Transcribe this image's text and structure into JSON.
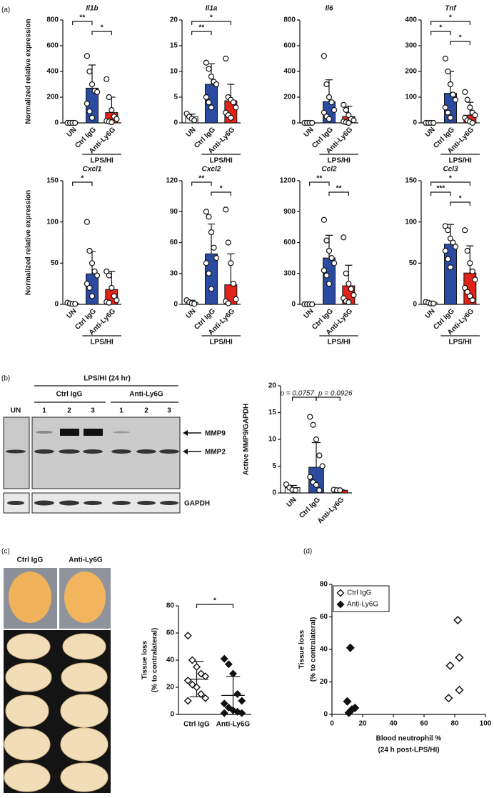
{
  "panel_labels": [
    "(a)",
    "(b)",
    "(c)",
    "(d)"
  ],
  "blot": {
    "title": "LPS/HI (24 hr)",
    "groups": [
      "Ctrl IgG",
      "Anti-Ly6G"
    ],
    "un": "UN",
    "lanes": [
      "1",
      "2",
      "3",
      "1",
      "2",
      "3"
    ],
    "bands": [
      "MMP9",
      "MMP2",
      "GAPDH"
    ]
  },
  "brain": {
    "columns": [
      "Ctrl IgG",
      "Anti-Ly6G"
    ]
  },
  "chart_data": [
    {
      "type": "bar",
      "title": "Il1b",
      "ylabel": "Normalized relative expression",
      "categories": [
        "UN",
        "Ctrl IgG",
        "Anti-Ly6G"
      ],
      "group_label": "LPS/HI",
      "colors": [
        "#ffffff",
        "#2b4ba0",
        "#e2231a"
      ],
      "values": [
        0,
        270,
        80
      ],
      "errors": [
        0,
        180,
        120
      ],
      "points": [
        [
          0,
          0,
          0,
          0
        ],
        [
          520,
          400,
          300,
          250,
          240,
          150,
          90,
          40
        ],
        [
          340,
          200,
          100,
          50,
          30,
          15,
          10,
          5
        ]
      ],
      "ylim": [
        0,
        800
      ],
      "yticks": [
        0,
        200,
        400,
        600,
        800
      ],
      "brackets": [
        {
          "from": "UN",
          "to": "Ctrl IgG",
          "label": "**"
        },
        {
          "from": "Ctrl IgG",
          "to": "Anti-Ly6G",
          "label": "*"
        }
      ]
    },
    {
      "type": "bar",
      "title": "Il1a",
      "categories": [
        "UN",
        "Ctrl IgG",
        "Anti-Ly6G"
      ],
      "group_label": "LPS/HI",
      "colors": [
        "#ffffff",
        "#2b4ba0",
        "#e2231a"
      ],
      "values": [
        1.2,
        7.5,
        4.3
      ],
      "errors": [
        0.5,
        4,
        3.2
      ],
      "points": [
        [
          1.8,
          1.2,
          0.8,
          0.5
        ],
        [
          11.7,
          10.5,
          9,
          8,
          7.5,
          5,
          4,
          3
        ],
        [
          12.5,
          5,
          4.5,
          4,
          3,
          2,
          1.5,
          1
        ]
      ],
      "ylim": [
        0,
        20
      ],
      "yticks": [
        0,
        5,
        10,
        15,
        20
      ],
      "brackets": [
        {
          "from": "UN",
          "to": "Anti-Ly6G",
          "label": "*"
        },
        {
          "from": "UN",
          "to": "Ctrl IgG",
          "label": "**"
        }
      ]
    },
    {
      "type": "bar",
      "title": "Il6",
      "categories": [
        "UN",
        "Ctrl IgG",
        "Anti-Ly6G"
      ],
      "group_label": "LPS/HI",
      "colors": [
        "#ffffff",
        "#2b4ba0",
        "#e2231a"
      ],
      "values": [
        0,
        165,
        50
      ],
      "errors": [
        0,
        170,
        80
      ],
      "points": [
        [
          0,
          0,
          0,
          0
        ],
        [
          520,
          300,
          200,
          160,
          100,
          80,
          50,
          30
        ],
        [
          140,
          100,
          60,
          30,
          20,
          10,
          5,
          0
        ]
      ],
      "ylim": [
        0,
        800
      ],
      "yticks": [
        0,
        200,
        400,
        600,
        800
      ],
      "brackets": []
    },
    {
      "type": "bar",
      "title": "Tnf",
      "categories": [
        "UN",
        "Ctrl IgG",
        "Anti-Ly6G"
      ],
      "group_label": "LPS/HI",
      "colors": [
        "#ffffff",
        "#2b4ba0",
        "#e2231a"
      ],
      "values": [
        0,
        115,
        30
      ],
      "errors": [
        0,
        85,
        50
      ],
      "points": [
        [
          0,
          0,
          0,
          0
        ],
        [
          250,
          200,
          150,
          110,
          90,
          60,
          40,
          20
        ],
        [
          120,
          90,
          60,
          40,
          30,
          20,
          10,
          5,
          0
        ]
      ],
      "ylim": [
        0,
        400
      ],
      "yticks": [
        0,
        100,
        200,
        300,
        400
      ],
      "brackets": [
        {
          "from": "UN",
          "to": "Anti-Ly6G",
          "label": "*"
        },
        {
          "from": "UN",
          "to": "Ctrl IgG",
          "label": "*"
        },
        {
          "from": "Ctrl IgG",
          "to": "Anti-Ly6G",
          "label": "*"
        }
      ]
    },
    {
      "type": "bar",
      "title": "Cxcl1",
      "ylabel": "Normalized relative expression",
      "categories": [
        "UN",
        "Ctrl IgG",
        "Anti-Ly6G"
      ],
      "group_label": "LPS/HI",
      "colors": [
        "#ffffff",
        "#2b4ba0",
        "#e2231a"
      ],
      "values": [
        1,
        37,
        18
      ],
      "errors": [
        0.5,
        27,
        22
      ],
      "points": [
        [
          2,
          1,
          0.5,
          0.5
        ],
        [
          100,
          65,
          50,
          40,
          35,
          25,
          20,
          10
        ],
        [
          40,
          35,
          20,
          10,
          5,
          3,
          2
        ]
      ],
      "ylim": [
        0,
        150
      ],
      "yticks": [
        0,
        50,
        100,
        150
      ],
      "brackets": [
        {
          "from": "UN",
          "to": "Ctrl IgG",
          "label": "*"
        }
      ]
    },
    {
      "type": "bar",
      "title": "Cxcl2",
      "categories": [
        "UN",
        "Ctrl IgG",
        "Anti-Ly6G"
      ],
      "group_label": "LPS/HI",
      "colors": [
        "#ffffff",
        "#2b4ba0",
        "#e2231a"
      ],
      "values": [
        2,
        49,
        19
      ],
      "errors": [
        2,
        29,
        30
      ],
      "points": [
        [
          4,
          2,
          1,
          0.5
        ],
        [
          90,
          85,
          70,
          55,
          45,
          40,
          30,
          15
        ],
        [
          92,
          60,
          40,
          20,
          5,
          3,
          1
        ]
      ],
      "ylim": [
        0,
        120
      ],
      "yticks": [
        0,
        30,
        60,
        90,
        120
      ],
      "brackets": [
        {
          "from": "UN",
          "to": "Ctrl IgG",
          "label": "**"
        },
        {
          "from": "Ctrl IgG",
          "to": "Anti-Ly6G",
          "label": "*"
        }
      ]
    },
    {
      "type": "bar",
      "title": "Ccl2",
      "categories": [
        "UN",
        "Ctrl IgG",
        "Anti-Ly6G"
      ],
      "group_label": "LPS/HI",
      "colors": [
        "#ffffff",
        "#2b4ba0",
        "#e2231a"
      ],
      "values": [
        0,
        450,
        180
      ],
      "errors": [
        0,
        220,
        200
      ],
      "points": [
        [
          0,
          0,
          0,
          0
        ],
        [
          820,
          620,
          520,
          450,
          400,
          330,
          280,
          200
        ],
        [
          650,
          300,
          200,
          150,
          90,
          60,
          30,
          20
        ]
      ],
      "ylim": [
        0,
        1200
      ],
      "yticks": [
        0,
        300,
        600,
        900,
        1200
      ],
      "brackets": [
        {
          "from": "UN",
          "to": "Ctrl IgG",
          "label": "**"
        },
        {
          "from": "Ctrl IgG",
          "to": "Anti-Ly6G",
          "label": "**"
        }
      ]
    },
    {
      "type": "bar",
      "title": "Ccl3",
      "categories": [
        "UN",
        "Ctrl IgG",
        "Anti-Ly6G"
      ],
      "group_label": "LPS/HI",
      "colors": [
        "#ffffff",
        "#2b4ba0",
        "#e2231a"
      ],
      "values": [
        2,
        73,
        38
      ],
      "errors": [
        1,
        24,
        33
      ],
      "points": [
        [
          3,
          2,
          1,
          1
        ],
        [
          95,
          90,
          80,
          75,
          70,
          65,
          55,
          45
        ],
        [
          90,
          65,
          50,
          40,
          30,
          20,
          15,
          10,
          5
        ]
      ],
      "ylim": [
        0,
        150
      ],
      "yticks": [
        0,
        50,
        100,
        150
      ],
      "brackets": [
        {
          "from": "UN",
          "to": "Anti-Ly6G",
          "label": "*"
        },
        {
          "from": "UN",
          "to": "Ctrl IgG",
          "label": "***"
        },
        {
          "from": "Ctrl IgG",
          "to": "Anti-Ly6G",
          "label": "*"
        }
      ]
    },
    {
      "type": "bar",
      "ylabel": "Active MMP9/GAPDH",
      "categories": [
        "UN",
        "Ctrl IgG",
        "Anti-Ly6G"
      ],
      "colors": [
        "#ffffff",
        "#2b4ba0",
        "#e2231a"
      ],
      "values": [
        1.0,
        4.8,
        0.5
      ],
      "errors": [
        0.4,
        4.6,
        0.1
      ],
      "points": [
        [
          1.6,
          1,
          0.6,
          0.5
        ],
        [
          14.2,
          12.7,
          10,
          7,
          5,
          3,
          2,
          1.5,
          0.5
        ],
        [
          0.6,
          0.5,
          0.5
        ]
      ],
      "ylim": [
        0,
        20
      ],
      "yticks": [
        0,
        5,
        10,
        15,
        20
      ],
      "brackets": [
        {
          "from": "UN",
          "to": "Ctrl IgG",
          "label": "p = 0.0757"
        },
        {
          "from": "Ctrl IgG",
          "to": "Anti-Ly6G",
          "label": "p = 0.0926"
        }
      ]
    },
    {
      "type": "dotplot",
      "ylabel": [
        "Tissue loss",
        "(% to contralateral)"
      ],
      "categories": [
        "Ctrl IgG",
        "Anti-Ly6G"
      ],
      "filled": [
        false,
        true
      ],
      "values": [
        26,
        14
      ],
      "errors": [
        13,
        14
      ],
      "points": [
        [
          58,
          40,
          35,
          30,
          28,
          25,
          22,
          20,
          15,
          12,
          10
        ],
        [
          41,
          37,
          30,
          15,
          10,
          8,
          5,
          3,
          2,
          1,
          1
        ]
      ],
      "ylim": [
        0,
        80
      ],
      "yticks": [
        0,
        20,
        40,
        60,
        80
      ],
      "brackets": [
        {
          "from": "Ctrl IgG",
          "to": "Anti-Ly6G",
          "label": "*"
        }
      ]
    },
    {
      "type": "scatter",
      "xlabel": [
        "Blood neutrophil %",
        "(24 h post-LPS/HI)"
      ],
      "ylabel": [
        "Tissue loss",
        "(% to contralateral)"
      ],
      "legend": "top-left",
      "series": [
        {
          "name": "Ctrl IgG",
          "filled": false,
          "x": [
            82,
            83,
            77,
            83,
            76
          ],
          "y": [
            58,
            35,
            30,
            15,
            10
          ]
        },
        {
          "name": "Anti-Ly6G",
          "filled": true,
          "x": [
            12,
            10,
            15,
            13,
            11
          ],
          "y": [
            41,
            8,
            4,
            3,
            1
          ]
        }
      ],
      "xlim": [
        0,
        100
      ],
      "xticks": [
        0,
        20,
        40,
        60,
        80,
        100
      ],
      "ylim": [
        0,
        80
      ],
      "yticks": [
        0,
        20,
        40,
        60,
        80
      ]
    }
  ]
}
